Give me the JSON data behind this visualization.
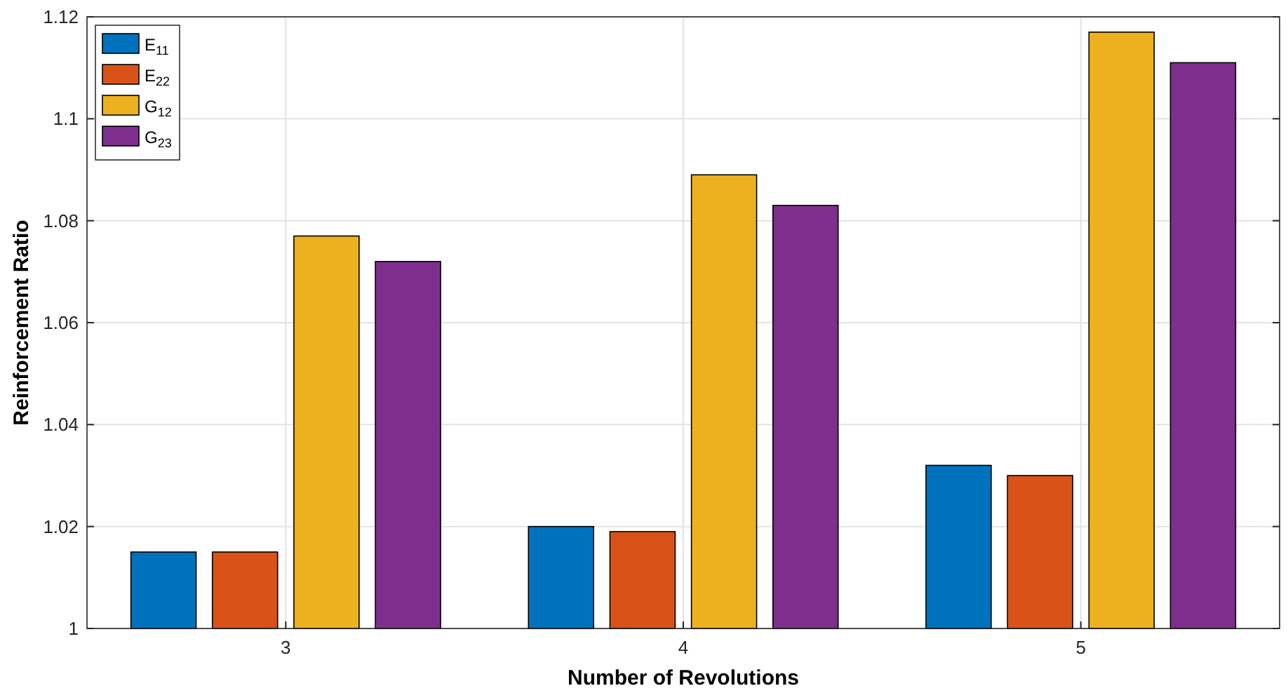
{
  "chart_data": {
    "type": "bar",
    "xlabel": "Number of Revolutions",
    "ylabel": "Reinforcement Ratio",
    "categories": [
      "3",
      "4",
      "5"
    ],
    "series": [
      {
        "name": "E$_{11}$",
        "color": "#0072bd",
        "values": [
          1.015,
          1.02,
          1.032
        ]
      },
      {
        "name": "E$_{22}$",
        "color": "#d95319",
        "values": [
          1.015,
          1.019,
          1.03
        ]
      },
      {
        "name": "G$_{12}$",
        "color": "#edb120",
        "values": [
          1.077,
          1.089,
          1.117
        ]
      },
      {
        "name": "G$_{23}$",
        "color": "#7e2f8e",
        "values": [
          1.072,
          1.083,
          1.111
        ]
      }
    ],
    "ylim": [
      1,
      1.12
    ],
    "yticks": [
      1,
      1.02,
      1.04,
      1.06,
      1.08,
      1.1,
      1.12
    ],
    "grid": true,
    "legend": "top left"
  }
}
